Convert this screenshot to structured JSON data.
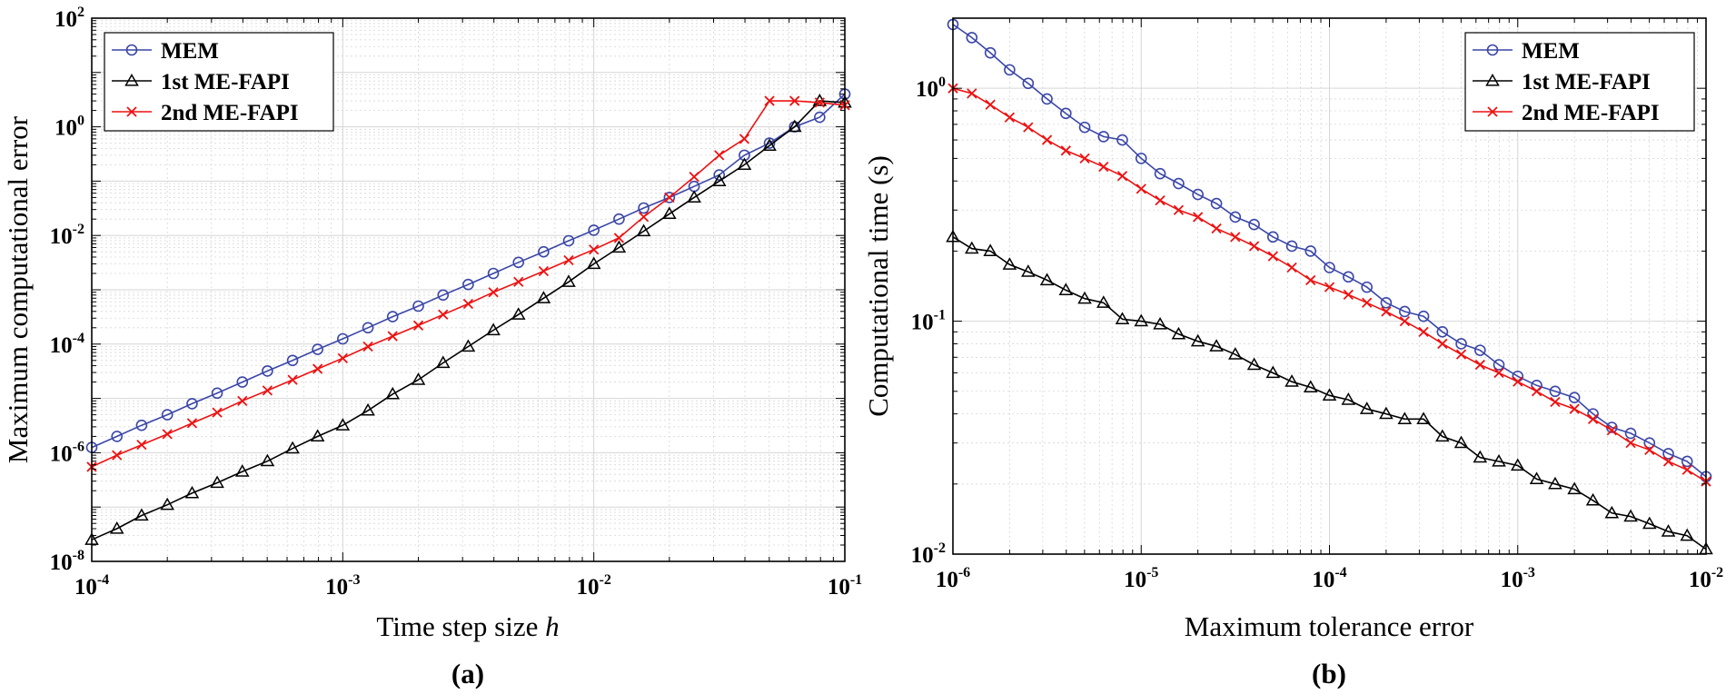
{
  "colors": {
    "MEM": "#3a46a8",
    "FAPI1": "#000000",
    "FAPI2": "#ee1111",
    "grid": "#d6d6d6"
  },
  "chart_data": [
    {
      "type": "line",
      "panel": "(a)",
      "xlabel": "Time step size",
      "xlabel_var": "h",
      "ylabel": "Maximum computational error",
      "xscale": "log",
      "yscale": "log",
      "xlim": [
        0.0001,
        0.1
      ],
      "ylim": [
        1e-08,
        100
      ],
      "x_tick_labels": [
        {
          "base": "10",
          "exp": "-4"
        },
        {
          "base": "10",
          "exp": "-3"
        },
        {
          "base": "10",
          "exp": "-2"
        },
        {
          "base": "10",
          "exp": "-1"
        }
      ],
      "y_tick_labels": [
        {
          "base": "10",
          "exp": "-8"
        },
        {
          "base": "10",
          "exp": "-6"
        },
        {
          "base": "10",
          "exp": "-4"
        },
        {
          "base": "10",
          "exp": "-2"
        },
        {
          "base": "10",
          "exp": "0"
        },
        {
          "base": "10",
          "exp": "2"
        }
      ],
      "grid": true,
      "legend": {
        "placement": "top-left",
        "entries": [
          "MEM",
          "1st ME-FAPI",
          "2nd ME-FAPI"
        ]
      },
      "series": [
        {
          "name": "MEM",
          "marker": "circle",
          "color": "#3a46a8",
          "x": [
            0.0001,
            0.000126,
            0.000158,
            0.0002,
            0.000251,
            0.000316,
            0.000398,
            0.000501,
            0.000631,
            0.000794,
            0.001,
            0.00126,
            0.00158,
            0.002,
            0.00251,
            0.00316,
            0.00398,
            0.00501,
            0.00631,
            0.00794,
            0.01,
            0.0126,
            0.0158,
            0.02,
            0.0251,
            0.0316,
            0.0398,
            0.0501,
            0.0631,
            0.0794,
            0.1
          ],
          "y": [
            1.25e-06,
            2e-06,
            3.2e-06,
            5e-06,
            8e-06,
            1.25e-05,
            2e-05,
            3.2e-05,
            5e-05,
            8e-05,
            0.000125,
            0.0002,
            0.00032,
            0.0005,
            0.0008,
            0.00125,
            0.002,
            0.0032,
            0.005,
            0.008,
            0.0125,
            0.02,
            0.032,
            0.05,
            0.08,
            0.13,
            0.3,
            0.5,
            1.0,
            1.5,
            4.0
          ]
        },
        {
          "name": "1st ME-FAPI",
          "marker": "triangle",
          "color": "#000000",
          "x": [
            0.0001,
            0.000126,
            0.000158,
            0.0002,
            0.000251,
            0.000316,
            0.000398,
            0.000501,
            0.000631,
            0.000794,
            0.001,
            0.00126,
            0.00158,
            0.002,
            0.00251,
            0.00316,
            0.00398,
            0.00501,
            0.00631,
            0.00794,
            0.01,
            0.0126,
            0.0158,
            0.02,
            0.0251,
            0.0316,
            0.0398,
            0.0501,
            0.0631,
            0.0794,
            0.1
          ],
          "y": [
            2.5e-08,
            4e-08,
            7e-08,
            1.1e-07,
            1.8e-07,
            2.8e-07,
            4.5e-07,
            7e-07,
            1.2e-06,
            2e-06,
            3.2e-06,
            6e-06,
            1.2e-05,
            2.2e-05,
            4.5e-05,
            9e-05,
            0.00018,
            0.00035,
            0.0007,
            0.0014,
            0.003,
            0.006,
            0.012,
            0.025,
            0.05,
            0.1,
            0.2,
            0.45,
            1.0,
            3.0,
            2.8
          ]
        },
        {
          "name": "2nd ME-FAPI",
          "marker": "x",
          "color": "#ee1111",
          "x": [
            0.0001,
            0.000126,
            0.000158,
            0.0002,
            0.000251,
            0.000316,
            0.000398,
            0.000501,
            0.000631,
            0.000794,
            0.001,
            0.00126,
            0.00158,
            0.002,
            0.00251,
            0.00316,
            0.00398,
            0.00501,
            0.00631,
            0.00794,
            0.01,
            0.0126,
            0.0158,
            0.02,
            0.0251,
            0.0316,
            0.0398,
            0.0501,
            0.0631,
            0.0794,
            0.1
          ],
          "y": [
            5.5e-07,
            9e-07,
            1.4e-06,
            2.2e-06,
            3.5e-06,
            5.5e-06,
            9e-06,
            1.4e-05,
            2.2e-05,
            3.5e-05,
            5.5e-05,
            9e-05,
            0.00014,
            0.00022,
            0.00035,
            0.00055,
            0.0009,
            0.0014,
            0.0022,
            0.0035,
            0.0055,
            0.009,
            0.022,
            0.05,
            0.12,
            0.3,
            0.6,
            3.0,
            3.0,
            2.8,
            2.5
          ]
        }
      ]
    },
    {
      "type": "line",
      "panel": "(b)",
      "xlabel": "Maximum tolerance error",
      "ylabel": "Computational time (s)",
      "xscale": "log",
      "yscale": "log",
      "xlim": [
        1e-06,
        0.01
      ],
      "ylim": [
        0.01,
        2.0
      ],
      "x_tick_labels": [
        {
          "base": "10",
          "exp": "-6"
        },
        {
          "base": "10",
          "exp": "-5"
        },
        {
          "base": "10",
          "exp": "-4"
        },
        {
          "base": "10",
          "exp": "-3"
        },
        {
          "base": "10",
          "exp": "-2"
        }
      ],
      "y_tick_labels": [
        {
          "base": "10",
          "exp": "-2"
        },
        {
          "base": "10",
          "exp": "-1"
        },
        {
          "base": "10",
          "exp": "0"
        }
      ],
      "grid": true,
      "legend": {
        "placement": "top-right",
        "entries": [
          "MEM",
          "1st ME-FAPI",
          "2nd ME-FAPI"
        ]
      },
      "series": [
        {
          "name": "MEM",
          "marker": "circle",
          "color": "#3a46a8",
          "x": [
            1e-06,
            1.26e-06,
            1.58e-06,
            2e-06,
            2.51e-06,
            3.16e-06,
            3.98e-06,
            5.01e-06,
            6.31e-06,
            7.94e-06,
            1e-05,
            1.26e-05,
            1.58e-05,
            2e-05,
            2.51e-05,
            3.16e-05,
            3.98e-05,
            5.01e-05,
            6.31e-05,
            7.94e-05,
            0.0001,
            0.000126,
            0.000158,
            0.0002,
            0.000251,
            0.000316,
            0.000398,
            0.000501,
            0.000631,
            0.000794,
            0.001,
            0.00126,
            0.00158,
            0.002,
            0.00251,
            0.00316,
            0.00398,
            0.00501,
            0.00631,
            0.00794,
            0.01
          ],
          "y": [
            1.88,
            1.65,
            1.42,
            1.2,
            1.05,
            0.9,
            0.78,
            0.68,
            0.62,
            0.6,
            0.5,
            0.43,
            0.39,
            0.35,
            0.32,
            0.28,
            0.26,
            0.23,
            0.21,
            0.2,
            0.17,
            0.155,
            0.14,
            0.12,
            0.11,
            0.105,
            0.09,
            0.08,
            0.075,
            0.065,
            0.058,
            0.053,
            0.05,
            0.047,
            0.04,
            0.035,
            0.033,
            0.03,
            0.027,
            0.025,
            0.0215
          ]
        },
        {
          "name": "1st ME-FAPI",
          "marker": "triangle",
          "color": "#000000",
          "x": [
            1e-06,
            1.26e-06,
            1.58e-06,
            2e-06,
            2.51e-06,
            3.16e-06,
            3.98e-06,
            5.01e-06,
            6.31e-06,
            7.94e-06,
            1e-05,
            1.26e-05,
            1.58e-05,
            2e-05,
            2.51e-05,
            3.16e-05,
            3.98e-05,
            5.01e-05,
            6.31e-05,
            7.94e-05,
            0.0001,
            0.000126,
            0.000158,
            0.0002,
            0.000251,
            0.000316,
            0.000398,
            0.000501,
            0.000631,
            0.000794,
            0.001,
            0.00126,
            0.00158,
            0.002,
            0.00251,
            0.00316,
            0.00398,
            0.00501,
            0.00631,
            0.00794,
            0.01
          ],
          "y": [
            0.23,
            0.205,
            0.2,
            0.175,
            0.163,
            0.15,
            0.136,
            0.125,
            0.12,
            0.102,
            0.1,
            0.097,
            0.088,
            0.082,
            0.078,
            0.072,
            0.065,
            0.06,
            0.055,
            0.052,
            0.048,
            0.046,
            0.042,
            0.04,
            0.038,
            0.038,
            0.032,
            0.03,
            0.026,
            0.025,
            0.024,
            0.021,
            0.02,
            0.019,
            0.017,
            0.015,
            0.0145,
            0.0135,
            0.0125,
            0.012,
            0.0105
          ]
        },
        {
          "name": "2nd ME-FAPI",
          "marker": "x",
          "color": "#ee1111",
          "x": [
            1e-06,
            1.26e-06,
            1.58e-06,
            2e-06,
            2.51e-06,
            3.16e-06,
            3.98e-06,
            5.01e-06,
            6.31e-06,
            7.94e-06,
            1e-05,
            1.26e-05,
            1.58e-05,
            2e-05,
            2.51e-05,
            3.16e-05,
            3.98e-05,
            5.01e-05,
            6.31e-05,
            7.94e-05,
            0.0001,
            0.000126,
            0.000158,
            0.0002,
            0.000251,
            0.000316,
            0.000398,
            0.000501,
            0.000631,
            0.000794,
            0.001,
            0.00126,
            0.00158,
            0.002,
            0.00251,
            0.00316,
            0.00398,
            0.00501,
            0.00631,
            0.00794,
            0.01
          ],
          "y": [
            1.0,
            0.95,
            0.85,
            0.75,
            0.68,
            0.6,
            0.54,
            0.5,
            0.46,
            0.42,
            0.37,
            0.33,
            0.3,
            0.28,
            0.25,
            0.23,
            0.21,
            0.19,
            0.17,
            0.15,
            0.14,
            0.13,
            0.12,
            0.11,
            0.1,
            0.09,
            0.08,
            0.072,
            0.065,
            0.06,
            0.055,
            0.05,
            0.045,
            0.042,
            0.038,
            0.034,
            0.03,
            0.028,
            0.025,
            0.023,
            0.0205
          ]
        }
      ]
    }
  ],
  "panels": [
    {
      "label": "(a)"
    },
    {
      "label": "(b)"
    }
  ]
}
